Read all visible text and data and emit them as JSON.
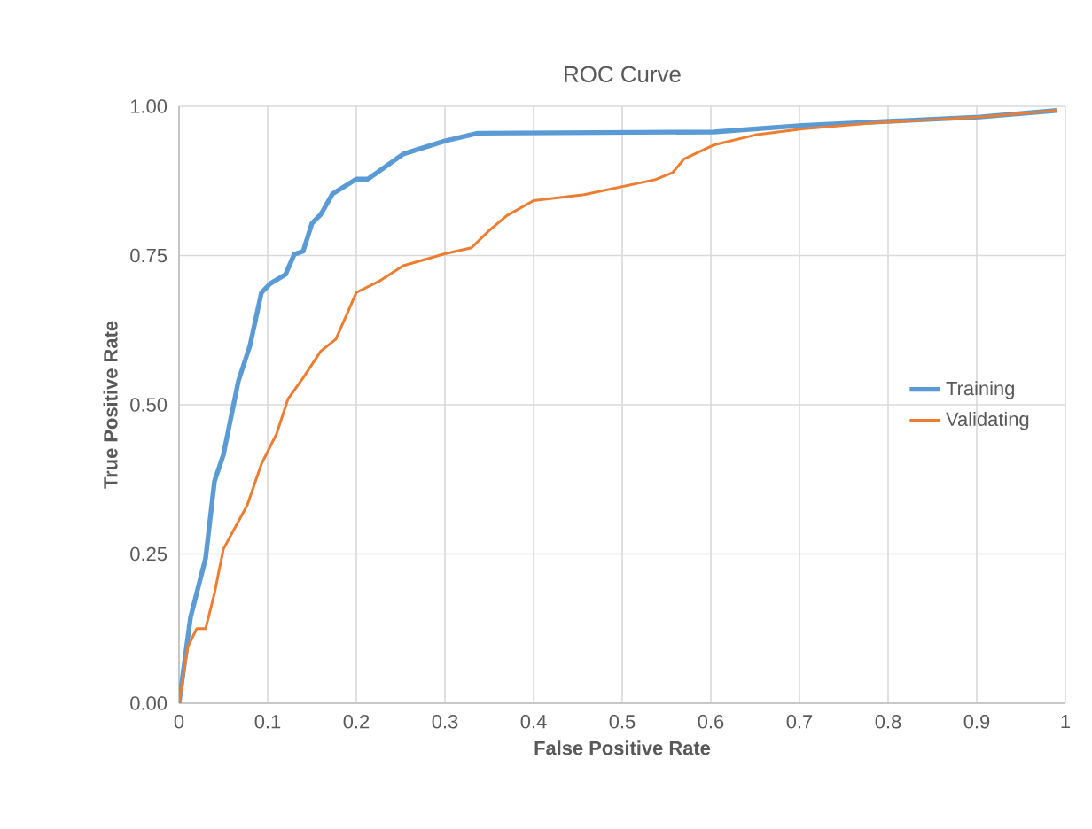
{
  "chart_data": {
    "type": "line",
    "title": "ROC Curve",
    "xlabel": "False Positive Rate",
    "ylabel": "True Positive Rate",
    "xlim": [
      0,
      1
    ],
    "ylim": [
      0,
      1
    ],
    "xticks": [
      0,
      0.1,
      0.2,
      0.3,
      0.4,
      0.5,
      0.6,
      0.7,
      0.8,
      0.9,
      1
    ],
    "yticks": [
      {
        "value": 0,
        "label": "0.00"
      },
      {
        "value": 0.25,
        "label": "0.25"
      },
      {
        "value": 0.5,
        "label": "0.50"
      },
      {
        "value": 0.75,
        "label": "0.75"
      },
      {
        "value": 1,
        "label": "1.00"
      }
    ],
    "grid": true,
    "legend": "right",
    "marker": "none",
    "line_style": "solid",
    "series": [
      {
        "name": "Training",
        "color": "#5b9bd5",
        "x": [
          0,
          0.013,
          0.03,
          0.04,
          0.05,
          0.067,
          0.08,
          0.093,
          0.103,
          0.12,
          0.13,
          0.14,
          0.15,
          0.16,
          0.173,
          0.2,
          0.213,
          0.253,
          0.3,
          0.337,
          0.603,
          0.703,
          0.903,
          0.99
        ],
        "values": [
          0,
          0.144,
          0.243,
          0.372,
          0.416,
          0.54,
          0.599,
          0.688,
          0.703,
          0.718,
          0.752,
          0.757,
          0.804,
          0.819,
          0.853,
          0.878,
          0.878,
          0.92,
          0.942,
          0.955,
          0.957,
          0.968,
          0.982,
          0.993
        ]
      },
      {
        "name": "Validating",
        "color": "#ed7d31",
        "x": [
          0,
          0.01,
          0.02,
          0.03,
          0.04,
          0.05,
          0.077,
          0.093,
          0.11,
          0.123,
          0.14,
          0.16,
          0.177,
          0.2,
          0.227,
          0.253,
          0.3,
          0.33,
          0.35,
          0.37,
          0.4,
          0.457,
          0.537,
          0.557,
          0.57,
          0.603,
          0.65,
          0.703,
          0.783,
          0.903,
          0.99
        ],
        "values": [
          0,
          0.095,
          0.125,
          0.125,
          0.184,
          0.258,
          0.332,
          0.401,
          0.451,
          0.51,
          0.545,
          0.59,
          0.61,
          0.688,
          0.708,
          0.733,
          0.753,
          0.763,
          0.792,
          0.817,
          0.842,
          0.852,
          0.877,
          0.889,
          0.912,
          0.935,
          0.952,
          0.962,
          0.972,
          0.982,
          0.993
        ]
      }
    ]
  }
}
